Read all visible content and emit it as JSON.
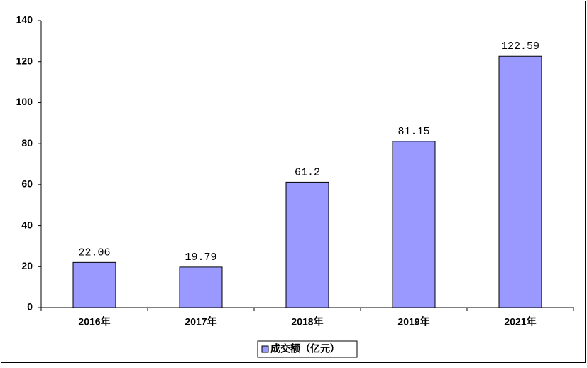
{
  "chart_data": {
    "type": "bar",
    "categories": [
      "2016年",
      "2017年",
      "2018年",
      "2019年",
      "2021年"
    ],
    "series": [
      {
        "name": "成交额（亿元）",
        "color": "#9999ff",
        "values": [
          22.06,
          19.79,
          61.2,
          81.15,
          122.59
        ]
      }
    ],
    "ylim": [
      0,
      140
    ],
    "yticks": [
      0,
      20,
      40,
      60,
      80,
      100,
      120,
      140
    ],
    "grid": false,
    "legend": "bottom"
  }
}
